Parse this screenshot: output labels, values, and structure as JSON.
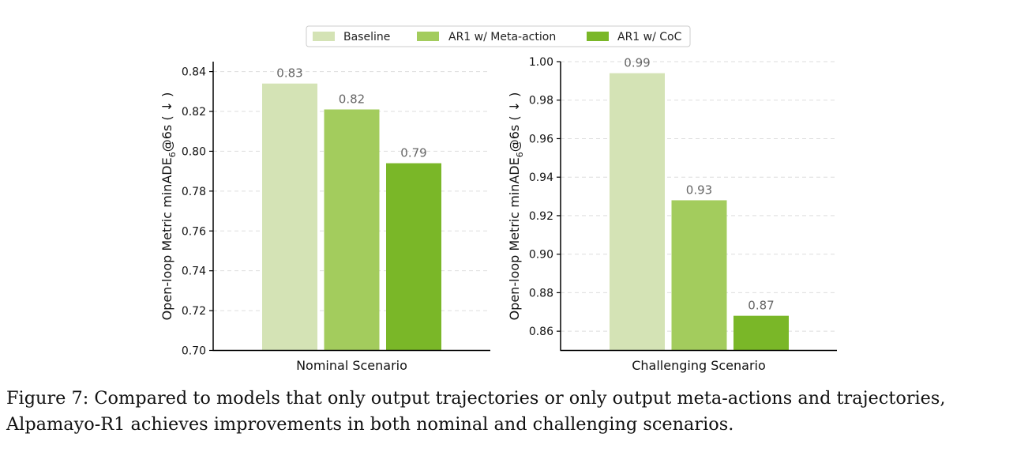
{
  "legend": [
    {
      "label": "Baseline",
      "color": "#d4e3b5"
    },
    {
      "label": "AR1 w/ Meta-action",
      "color": "#a3cc5d"
    },
    {
      "label": "AR1 w/ CoC",
      "color": "#7ab728"
    }
  ],
  "chart_data": [
    {
      "type": "bar",
      "xlabel": "Nominal Scenario",
      "ylabel_prefix": "Open-loop Metric minADE",
      "ylabel_sub": "6",
      "ylabel_suffix": "@6s ( ↓ )",
      "ylim": [
        0.7,
        0.845
      ],
      "yticks": [
        0.7,
        0.72,
        0.74,
        0.76,
        0.78,
        0.8,
        0.82,
        0.84
      ],
      "ytick_labels": [
        "0.70",
        "0.72",
        "0.74",
        "0.76",
        "0.78",
        "0.80",
        "0.82",
        "0.84"
      ],
      "grid": true,
      "series": [
        {
          "name": "Baseline",
          "value": 0.834,
          "label": "0.83"
        },
        {
          "name": "AR1 w/ Meta-action",
          "value": 0.821,
          "label": "0.82"
        },
        {
          "name": "AR1 w/ CoC",
          "value": 0.794,
          "label": "0.79"
        }
      ]
    },
    {
      "type": "bar",
      "xlabel": "Challenging Scenario",
      "ylabel_prefix": "Open-loop Metric minADE",
      "ylabel_sub": "6",
      "ylabel_suffix": "@6s ( ↓ )",
      "ylim": [
        0.85,
        1.0
      ],
      "yticks": [
        0.86,
        0.88,
        0.9,
        0.92,
        0.94,
        0.96,
        0.98,
        1.0
      ],
      "ytick_labels": [
        "0.86",
        "0.88",
        "0.90",
        "0.92",
        "0.94",
        "0.96",
        "0.98",
        "1.00"
      ],
      "grid": true,
      "series": [
        {
          "name": "Baseline",
          "value": 0.994,
          "label": "0.99"
        },
        {
          "name": "AR1 w/ Meta-action",
          "value": 0.928,
          "label": "0.93"
        },
        {
          "name": "AR1 w/ CoC",
          "value": 0.868,
          "label": "0.87"
        }
      ]
    }
  ],
  "caption": {
    "line1": "Figure 7: Compared to models that only output trajectories or only output meta-actions and trajectories,",
    "line2": "Alpamayo-R1 achieves improvements in both nominal and challenging scenarios."
  }
}
